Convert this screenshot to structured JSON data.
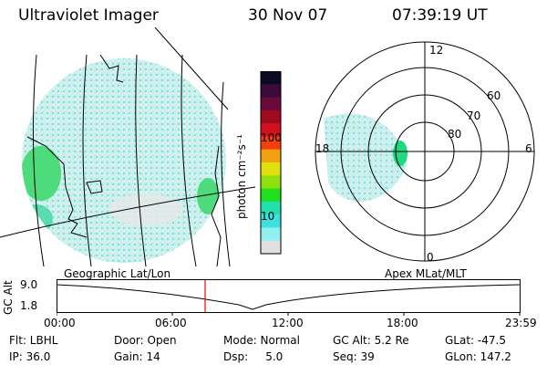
{
  "header": {
    "instrument": "Ultraviolet Imager",
    "date": "30 Nov 07",
    "time": "07:39:19 UT"
  },
  "left_panel": {
    "caption": "Geographic Lat/Lon"
  },
  "right_panel": {
    "caption": "Apex MLat/MLT",
    "mlt_labels": {
      "top": "12",
      "left": "18",
      "right": "6",
      "bottom": "0"
    },
    "mlat_labels": [
      "60",
      "70",
      "80"
    ]
  },
  "colorbar": {
    "unit_label": "photon cm⁻²s⁻¹",
    "ticks": [
      "100",
      "10"
    ],
    "colors": [
      "#0a0a25",
      "#3a0a3a",
      "#6a0a3a",
      "#a00a20",
      "#d0101a",
      "#f04010",
      "#f0a010",
      "#e0e010",
      "#90e010",
      "#20e020",
      "#20e0b0",
      "#40e0e0",
      "#90f0f0",
      "#e0e0e0"
    ]
  },
  "altitude_plot": {
    "y_axis_label": "GC Alt",
    "y_ticks": [
      "9.0",
      "1.8"
    ],
    "x_ticks": [
      "00:00",
      "06:00",
      "12:00",
      "18:00",
      "23:59"
    ],
    "current_marker_color": "#ff0000"
  },
  "status": {
    "flt": "Flt: LBHL",
    "ip": "IP: 36.0",
    "door": "Door: Open",
    "gain": "Gain: 14",
    "mode": "Mode: Normal",
    "dsp": "Dsp:     5.0",
    "gc_alt": "GC Alt: 5.2 Re",
    "seq": "Seq: 39",
    "glat": "GLat: -47.5",
    "glon": "GLon: 147.2"
  }
}
